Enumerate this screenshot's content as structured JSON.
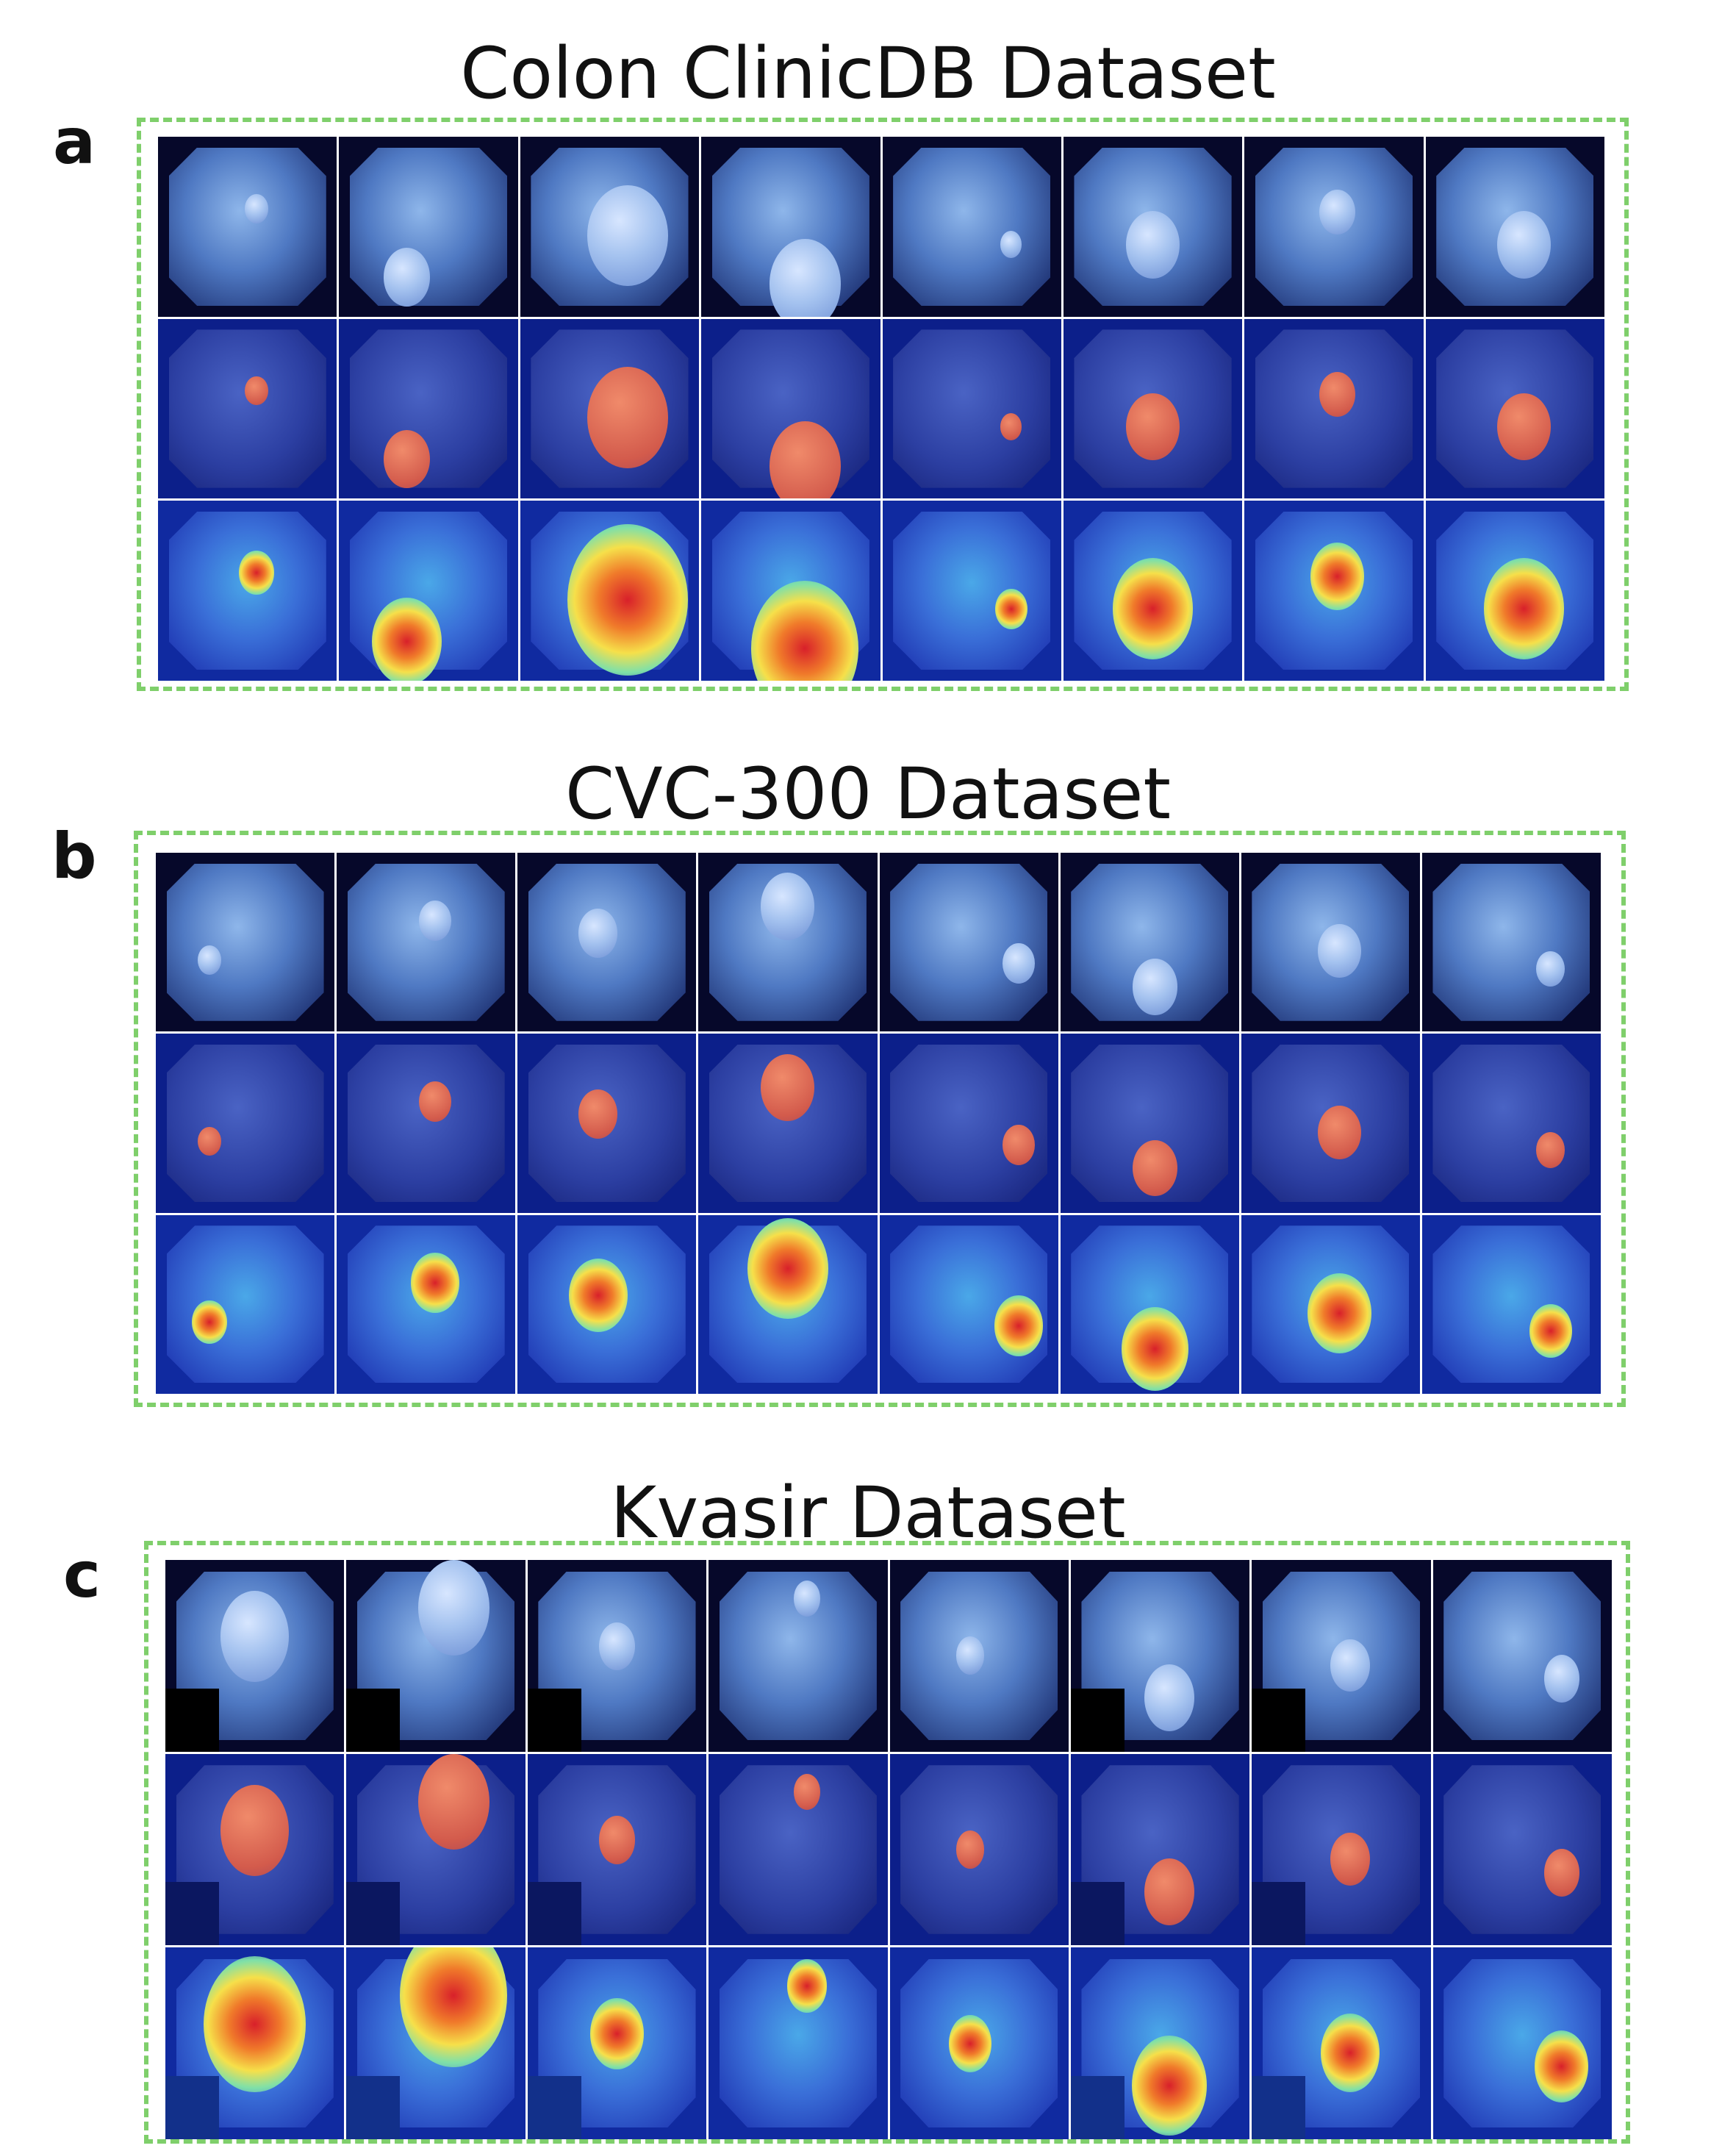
{
  "panels": [
    {
      "letter": "a",
      "title": "Colon ClinicDB Dataset",
      "rows": [
        "original",
        "ground-truth",
        "heatmap"
      ],
      "columns": 8,
      "polyps": [
        [
          0.55,
          0.4,
          0.13
        ],
        [
          0.38,
          0.78,
          0.26
        ],
        [
          0.6,
          0.55,
          0.45
        ],
        [
          0.58,
          0.82,
          0.4
        ],
        [
          0.72,
          0.6,
          0.12
        ],
        [
          0.5,
          0.6,
          0.3
        ],
        [
          0.52,
          0.42,
          0.2
        ],
        [
          0.55,
          0.6,
          0.3
        ]
      ]
    },
    {
      "letter": "b",
      "title": "CVC-300 Dataset",
      "rows": [
        "original",
        "ground-truth",
        "heatmap"
      ],
      "columns": 8,
      "polyps": [
        [
          0.3,
          0.6,
          0.13
        ],
        [
          0.55,
          0.38,
          0.18
        ],
        [
          0.45,
          0.45,
          0.22
        ],
        [
          0.5,
          0.3,
          0.3
        ],
        [
          0.78,
          0.62,
          0.18
        ],
        [
          0.53,
          0.75,
          0.25
        ],
        [
          0.55,
          0.55,
          0.24
        ],
        [
          0.72,
          0.65,
          0.16
        ]
      ]
    },
    {
      "letter": "c",
      "title": "Kvasir Dataset",
      "rows": [
        "original",
        "ground-truth",
        "heatmap"
      ],
      "columns": 8,
      "black_box_columns": [
        0,
        1,
        2,
        5,
        6
      ],
      "polyps": [
        [
          0.5,
          0.4,
          0.38
        ],
        [
          0.6,
          0.25,
          0.4
        ],
        [
          0.5,
          0.45,
          0.2
        ],
        [
          0.55,
          0.2,
          0.15
        ],
        [
          0.45,
          0.5,
          0.16
        ],
        [
          0.55,
          0.72,
          0.28
        ],
        [
          0.55,
          0.55,
          0.22
        ],
        [
          0.72,
          0.62,
          0.2
        ]
      ]
    }
  ]
}
